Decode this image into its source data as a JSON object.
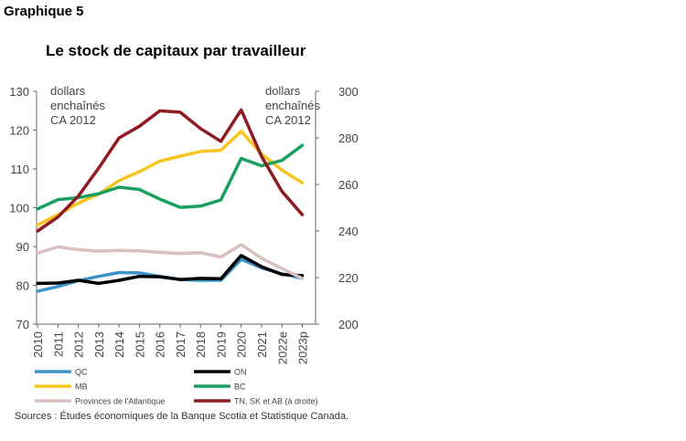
{
  "figure_label": "Graphique 5",
  "source_note": "Sources : Études économiques de la Banque Scotia et Statistique Canada.",
  "chart_data": {
    "type": "line",
    "title": "Le stock de capitaux par travailleur",
    "unit_left": [
      "dollars",
      "enchaînés",
      "CA 2012"
    ],
    "unit_right": [
      "dollars",
      "enchaînés",
      "CA 2012"
    ],
    "categories": [
      "2010",
      "2011",
      "2012",
      "2013",
      "2014",
      "2015",
      "2016",
      "2017",
      "2018",
      "2019",
      "2020",
      "2021",
      "2022e",
      "2023p"
    ],
    "ylim": [
      70,
      130
    ],
    "yticks": [
      70,
      80,
      90,
      100,
      110,
      120,
      130
    ],
    "y2lim": [
      200,
      300
    ],
    "y2ticks": [
      200,
      220,
      240,
      260,
      280,
      300
    ],
    "grid": false,
    "legend_position": "bottom",
    "series": [
      {
        "name": "QC",
        "axis": "left",
        "color": "#3a93c9",
        "values": [
          78.5,
          79.7,
          81.2,
          82.3,
          83.3,
          83.2,
          82.3,
          81.5,
          81.3,
          81.3,
          86.7,
          84.5,
          83.0,
          81.8
        ]
      },
      {
        "name": "ON",
        "axis": "left",
        "color": "#000000",
        "values": [
          80.5,
          80.6,
          81.3,
          80.5,
          81.3,
          82.3,
          82.2,
          81.5,
          81.8,
          81.7,
          87.7,
          84.8,
          82.8,
          82.5
        ]
      },
      {
        "name": "MB",
        "axis": "left",
        "color": "#f7c51e",
        "values": [
          95.5,
          98.2,
          101.2,
          103.5,
          107.0,
          109.3,
          112.0,
          113.3,
          114.5,
          114.8,
          119.7,
          113.8,
          109.7,
          106.4
        ]
      },
      {
        "name": "BC",
        "axis": "left",
        "color": "#18a05e",
        "values": [
          99.7,
          102.1,
          102.6,
          103.6,
          105.3,
          104.7,
          102.2,
          100.1,
          100.4,
          102.0,
          112.7,
          110.8,
          112.2,
          116.1
        ]
      },
      {
        "name": "Provinces de l'Atlantique",
        "axis": "left",
        "color": "#d9c1c1",
        "values": [
          88.3,
          89.9,
          89.2,
          88.8,
          89.0,
          88.9,
          88.5,
          88.2,
          88.4,
          87.3,
          90.5,
          87.0,
          84.3,
          81.8
        ]
      },
      {
        "name": "TN, SK et AB (à droite)",
        "axis": "right",
        "color": "#8e1b22",
        "values": [
          240.0,
          246.0,
          255.0,
          267.0,
          280.0,
          285.0,
          291.6,
          291.0,
          284.0,
          278.5,
          292.0,
          272.0,
          257.0,
          247.0
        ]
      }
    ]
  }
}
